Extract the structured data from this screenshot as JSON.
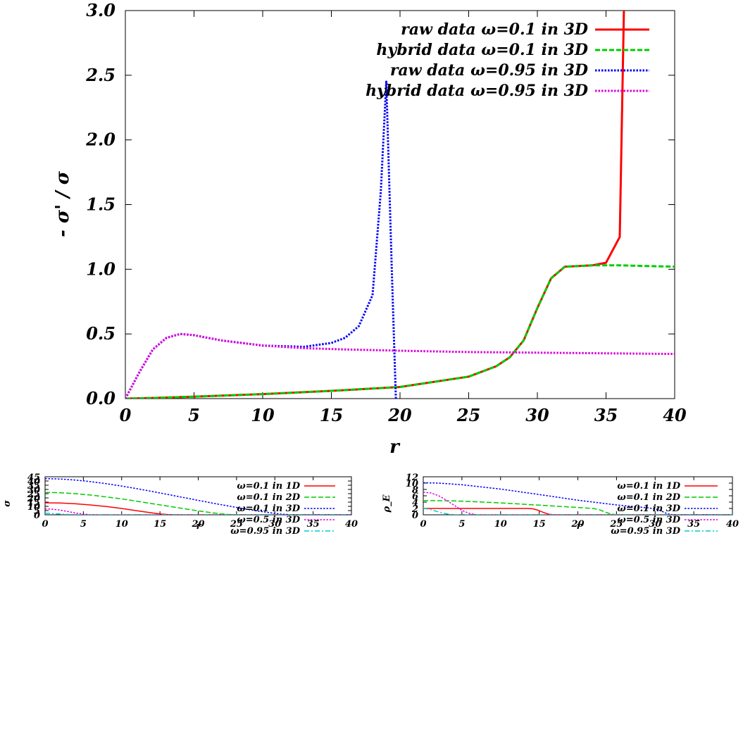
{
  "chart_data": [
    {
      "type": "line",
      "xlabel": "r",
      "ylabel": "- σ' / σ",
      "xlim": [
        0,
        40
      ],
      "ylim": [
        0,
        3.0
      ],
      "x_ticks": [
        "0",
        "5",
        "10",
        "15",
        "20",
        "25",
        "30",
        "35",
        "40"
      ],
      "y_ticks": [
        "0.0",
        "0.5",
        "1.0",
        "1.5",
        "2.0",
        "2.5",
        "3.0"
      ],
      "legend_position": "top-right",
      "series": [
        {
          "name": "raw data ω=0.1 in 3D",
          "color": "#ff0000",
          "dash": "solid",
          "x": [
            0,
            2,
            5,
            10,
            15,
            20,
            25,
            27,
            28,
            29,
            30,
            31,
            32,
            34,
            35,
            36,
            36.3
          ],
          "y": [
            0.0,
            0.005,
            0.015,
            0.035,
            0.06,
            0.09,
            0.17,
            0.25,
            0.32,
            0.45,
            0.7,
            0.93,
            1.02,
            1.03,
            1.05,
            1.25,
            3.0
          ]
        },
        {
          "name": "hybrid data ω=0.1 in 3D",
          "color": "#00cc00",
          "dash": "dashed",
          "x": [
            0,
            2,
            5,
            10,
            15,
            20,
            25,
            27,
            28,
            29,
            30,
            31,
            32,
            34,
            36,
            40
          ],
          "y": [
            0.0,
            0.005,
            0.015,
            0.035,
            0.06,
            0.09,
            0.17,
            0.25,
            0.32,
            0.45,
            0.7,
            0.93,
            1.02,
            1.03,
            1.03,
            1.02
          ]
        },
        {
          "name": "raw data ω=0.95 in 3D",
          "color": "#0000ff",
          "dash": "dotted",
          "x": [
            0,
            1,
            2,
            3,
            4,
            5,
            7,
            10,
            13,
            15,
            16,
            17,
            18,
            18.6,
            19,
            19.4,
            19.7
          ],
          "y": [
            0.0,
            0.2,
            0.38,
            0.47,
            0.5,
            0.49,
            0.45,
            0.41,
            0.4,
            0.43,
            0.47,
            0.56,
            0.8,
            1.6,
            2.45,
            1.0,
            0.0
          ]
        },
        {
          "name": "hybrid data ω=0.95 in 3D",
          "color": "#dd00dd",
          "dash": "dotted",
          "x": [
            0,
            1,
            2,
            3,
            4,
            5,
            7,
            10,
            13,
            16,
            20,
            25,
            30,
            35,
            40
          ],
          "y": [
            0.0,
            0.2,
            0.38,
            0.47,
            0.5,
            0.49,
            0.45,
            0.41,
            0.39,
            0.38,
            0.37,
            0.36,
            0.355,
            0.35,
            0.345
          ]
        }
      ]
    },
    {
      "type": "line",
      "xlabel": "r",
      "ylabel": "σ",
      "xlim": [
        0,
        40
      ],
      "ylim": [
        0,
        45
      ],
      "x_ticks": [
        "0",
        "5",
        "10",
        "15",
        "20",
        "25",
        "30",
        "35",
        "40"
      ],
      "y_ticks": [
        "0",
        "5",
        "10",
        "15",
        "20",
        "25",
        "30",
        "35",
        "40",
        "45"
      ],
      "legend_position": "top-right",
      "series": [
        {
          "name": "ω=0.1 in 1D",
          "color": "#ff0000",
          "dash": "solid",
          "x": [
            0,
            2,
            4,
            6,
            8,
            10,
            12,
            14,
            15,
            16,
            17,
            18,
            40
          ],
          "y": [
            14.2,
            13.9,
            13.0,
            11.6,
            9.8,
            7.5,
            4.8,
            2.2,
            1.0,
            0.3,
            0.05,
            0.0,
            0.0
          ]
        },
        {
          "name": "ω=0.1 in 2D",
          "color": "#00cc00",
          "dash": "dashed",
          "x": [
            0,
            2,
            4,
            6,
            8,
            10,
            12,
            14,
            16,
            18,
            20,
            22,
            23,
            24,
            25,
            26,
            40
          ],
          "y": [
            26.5,
            26.1,
            25.0,
            23.3,
            21.2,
            18.8,
            16.1,
            13.2,
            10.3,
            7.4,
            4.7,
            2.2,
            1.1,
            0.4,
            0.1,
            0.0,
            0.0
          ]
        },
        {
          "name": "ω=0.1 in 3D",
          "color": "#0000ff",
          "dash": "dotted",
          "x": [
            0,
            2,
            4,
            6,
            8,
            10,
            12,
            14,
            16,
            18,
            20,
            22,
            24,
            26,
            28,
            30,
            31,
            32,
            33,
            40
          ],
          "y": [
            42.8,
            42.3,
            41.1,
            39.2,
            36.8,
            34.0,
            30.9,
            27.6,
            24.1,
            20.6,
            17.1,
            13.6,
            10.3,
            7.1,
            4.2,
            1.7,
            0.7,
            0.2,
            0.0,
            0.0
          ]
        },
        {
          "name": "ω=0.5 in 3D",
          "color": "#dd00dd",
          "dash": "dotted",
          "x": [
            0,
            1,
            2,
            3,
            4,
            5,
            6,
            7,
            40
          ],
          "y": [
            7.0,
            6.6,
            5.5,
            3.8,
            2.0,
            0.8,
            0.2,
            0.0,
            0.0
          ]
        },
        {
          "name": "ω=0.95 in 3D",
          "color": "#00cccc",
          "dash": "dashdot",
          "x": [
            0,
            1,
            2,
            3,
            4,
            5,
            40
          ],
          "y": [
            1.9,
            1.5,
            0.9,
            0.4,
            0.1,
            0.0,
            0.0
          ]
        }
      ]
    },
    {
      "type": "line",
      "xlabel": "r",
      "ylabel": "ρ_E",
      "xlim": [
        0,
        40
      ],
      "ylim": [
        0,
        12
      ],
      "x_ticks": [
        "0",
        "5",
        "10",
        "15",
        "20",
        "25",
        "30",
        "35",
        "40"
      ],
      "y_ticks": [
        "0",
        "2",
        "4",
        "6",
        "8",
        "10",
        "12"
      ],
      "legend_position": "top-right",
      "series": [
        {
          "name": "ω=0.1 in 1D",
          "color": "#ff0000",
          "dash": "solid",
          "x": [
            0,
            5,
            10,
            13.5,
            14.2,
            14.8,
            15.5,
            16.2,
            17,
            40
          ],
          "y": [
            2.0,
            2.0,
            2.0,
            2.0,
            1.9,
            1.5,
            0.8,
            0.2,
            0.0,
            0.0
          ]
        },
        {
          "name": "ω=0.1 in 2D",
          "color": "#00cc00",
          "dash": "dashed",
          "x": [
            0,
            2,
            5,
            10,
            15,
            20,
            22,
            22.8,
            23.5,
            24.2,
            25,
            40
          ],
          "y": [
            4.5,
            4.47,
            4.3,
            3.75,
            3.05,
            2.3,
            2.0,
            1.6,
            0.9,
            0.3,
            0.0,
            0.0
          ]
        },
        {
          "name": "ω=0.1 in 3D",
          "color": "#0000ff",
          "dash": "dotted",
          "x": [
            0,
            2,
            5,
            10,
            15,
            20,
            25,
            29,
            30,
            30.8,
            31.5,
            32.2,
            40
          ],
          "y": [
            10.1,
            10.0,
            9.5,
            8.1,
            6.4,
            4.6,
            3.1,
            2.2,
            1.9,
            1.2,
            0.4,
            0.05,
            0.0
          ]
        },
        {
          "name": "ω=0.5 in 3D",
          "color": "#dd00dd",
          "dash": "dotted",
          "x": [
            0,
            1,
            2,
            3,
            4,
            5,
            6,
            7,
            40
          ],
          "y": [
            7.1,
            6.9,
            6.0,
            4.6,
            3.0,
            1.4,
            0.4,
            0.0,
            0.0
          ]
        },
        {
          "name": "ω=0.95 in 3D",
          "color": "#00cccc",
          "dash": "dashdot",
          "x": [
            0,
            1,
            2,
            3,
            4,
            40
          ],
          "y": [
            2.1,
            1.6,
            0.9,
            0.3,
            0.0,
            0.0
          ]
        }
      ]
    }
  ]
}
